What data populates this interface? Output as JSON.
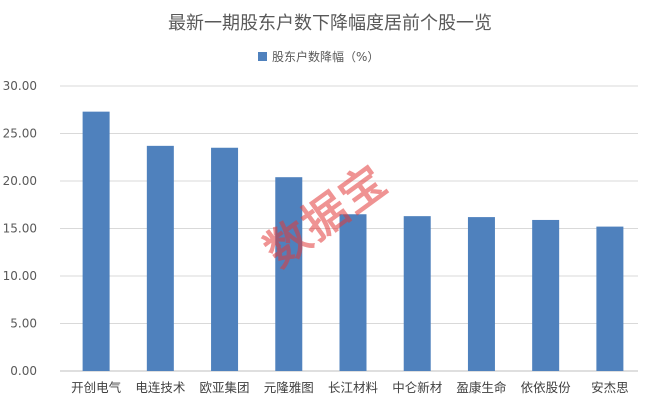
{
  "chart_data": {
    "type": "bar",
    "title": "最新一期股东户数下降幅度居前个股一览",
    "categories": [
      "开创电气",
      "电连技术",
      "欧亚集团",
      "元隆雅图",
      "长江材料",
      "中仑新材",
      "盈康生命",
      "依依股份",
      "安杰思"
    ],
    "series": [
      {
        "name": "股东户数降幅（%）",
        "values": [
          27.3,
          23.7,
          23.5,
          20.4,
          16.5,
          16.3,
          16.2,
          15.9,
          15.2
        ],
        "color": "#4f81bd"
      }
    ],
    "ylim": [
      0,
      30
    ],
    "yticks": [
      "0.00",
      "5.00",
      "10.00",
      "15.00",
      "20.00",
      "25.00",
      "30.00"
    ],
    "grid": true,
    "legend_position": "top-center",
    "watermark": "数据宝"
  }
}
